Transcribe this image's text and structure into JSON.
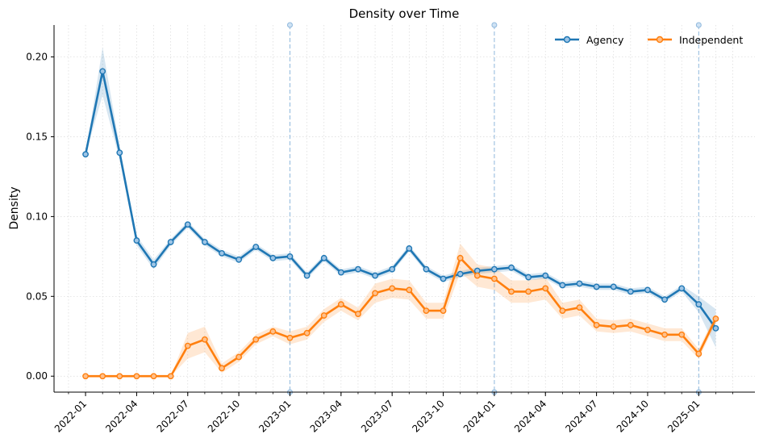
{
  "chart_data": {
    "type": "line",
    "title": "Density over Time",
    "xlabel": "",
    "ylabel": "Density",
    "x_ticks": [
      "2022-01",
      "2022-04",
      "2022-07",
      "2022-10",
      "2023-01",
      "2023-04",
      "2023-07",
      "2023-10",
      "2024-01",
      "2024-04",
      "2024-07",
      "2024-10",
      "2025-01"
    ],
    "y_ticks": [
      "0.00",
      "0.05",
      "0.10",
      "0.15",
      "0.20"
    ],
    "ylim": [
      -0.01,
      0.22
    ],
    "xlim": [
      -1.85,
      39.3
    ],
    "grid": true,
    "legend_position": "top-right",
    "year_markers": [
      12,
      24,
      36
    ],
    "x": [
      "2022-01",
      "2022-02",
      "2022-03",
      "2022-04",
      "2022-05",
      "2022-06",
      "2022-07",
      "2022-08",
      "2022-09",
      "2022-10",
      "2022-11",
      "2022-12",
      "2023-01",
      "2023-02",
      "2023-03",
      "2023-04",
      "2023-05",
      "2023-06",
      "2023-07",
      "2023-08",
      "2023-09",
      "2023-10",
      "2023-11",
      "2023-12",
      "2024-01",
      "2024-02",
      "2024-03",
      "2024-04",
      "2024-05",
      "2024-06",
      "2024-07",
      "2024-08",
      "2024-09",
      "2024-10",
      "2024-11",
      "2024-12",
      "2025-01",
      "2025-02"
    ],
    "series": [
      {
        "name": "Agency",
        "color": "#1f77b4",
        "values": [
          0.139,
          0.191,
          0.14,
          0.085,
          0.07,
          0.084,
          0.095,
          0.084,
          0.077,
          0.073,
          0.081,
          0.074,
          0.075,
          0.063,
          0.074,
          0.065,
          0.067,
          0.063,
          0.067,
          0.08,
          0.067,
          0.061,
          0.064,
          0.066,
          0.067,
          0.068,
          0.062,
          0.063,
          0.057,
          0.058,
          0.056,
          0.056,
          0.053,
          0.054,
          0.048,
          0.055,
          0.045,
          0.03
        ],
        "band": [
          0.0,
          0.015,
          0.004,
          0.003,
          0.003,
          0.002,
          0.002,
          0.002,
          0.002,
          0.002,
          0.002,
          0.002,
          0.002,
          0.002,
          0.002,
          0.002,
          0.002,
          0.002,
          0.002,
          0.002,
          0.002,
          0.002,
          0.002,
          0.002,
          0.002,
          0.002,
          0.002,
          0.002,
          0.002,
          0.002,
          0.002,
          0.002,
          0.002,
          0.002,
          0.002,
          0.002,
          0.005,
          0.012
        ]
      },
      {
        "name": "Independent",
        "color": "#ff7f0e",
        "values": [
          0.0,
          0.0,
          0.0,
          0.0,
          0.0,
          0.0,
          0.019,
          0.023,
          0.005,
          0.012,
          0.023,
          0.028,
          0.024,
          0.027,
          0.038,
          0.045,
          0.039,
          0.052,
          0.055,
          0.054,
          0.041,
          0.041,
          0.074,
          0.063,
          0.061,
          0.053,
          0.053,
          0.055,
          0.041,
          0.043,
          0.032,
          0.031,
          0.032,
          0.029,
          0.026,
          0.026,
          0.014,
          0.036
        ],
        "band": [
          0.0,
          0.0,
          0.0,
          0.0,
          0.0,
          0.0,
          0.008,
          0.008,
          0.003,
          0.003,
          0.003,
          0.003,
          0.004,
          0.004,
          0.004,
          0.004,
          0.004,
          0.006,
          0.006,
          0.006,
          0.005,
          0.005,
          0.009,
          0.007,
          0.007,
          0.007,
          0.007,
          0.007,
          0.005,
          0.005,
          0.004,
          0.004,
          0.004,
          0.004,
          0.004,
          0.004,
          0.003,
          0.003
        ]
      }
    ]
  }
}
